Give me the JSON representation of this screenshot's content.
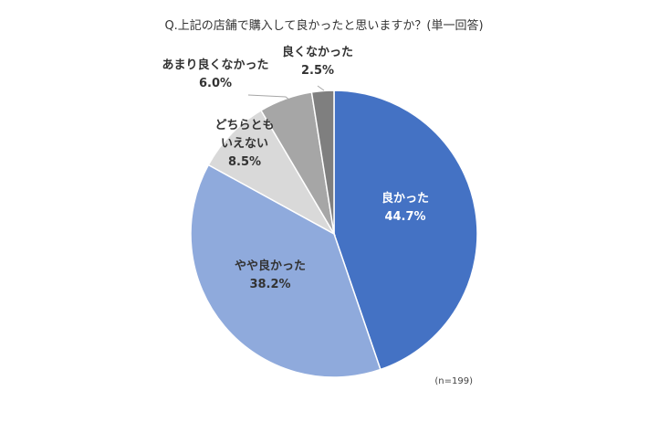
{
  "chart_data": {
    "type": "pie",
    "title": "Q.上記の店舗で購入して良かったと思いますか？(単一回答)",
    "note": "(n=199)",
    "unit": "%",
    "slices": [
      {
        "label": "良かった",
        "value": 44.7,
        "value_text": "44.7%",
        "color": "#4472C4"
      },
      {
        "label": "やや良かった",
        "value": 38.2,
        "value_text": "38.2%",
        "color": "#8FAADC"
      },
      {
        "label": "どちらともいえない",
        "label_lines": [
          "どちらとも",
          "いえない"
        ],
        "value": 8.5,
        "value_text": "8.5%",
        "color": "#D9D9D9"
      },
      {
        "label": "あまり良くなかった",
        "value": 6.0,
        "value_text": "6.0%",
        "color": "#A6A6A6"
      },
      {
        "label": "良くなかった",
        "value": 2.5,
        "value_text": "2.5%",
        "color": "#7F7F7F"
      }
    ]
  }
}
